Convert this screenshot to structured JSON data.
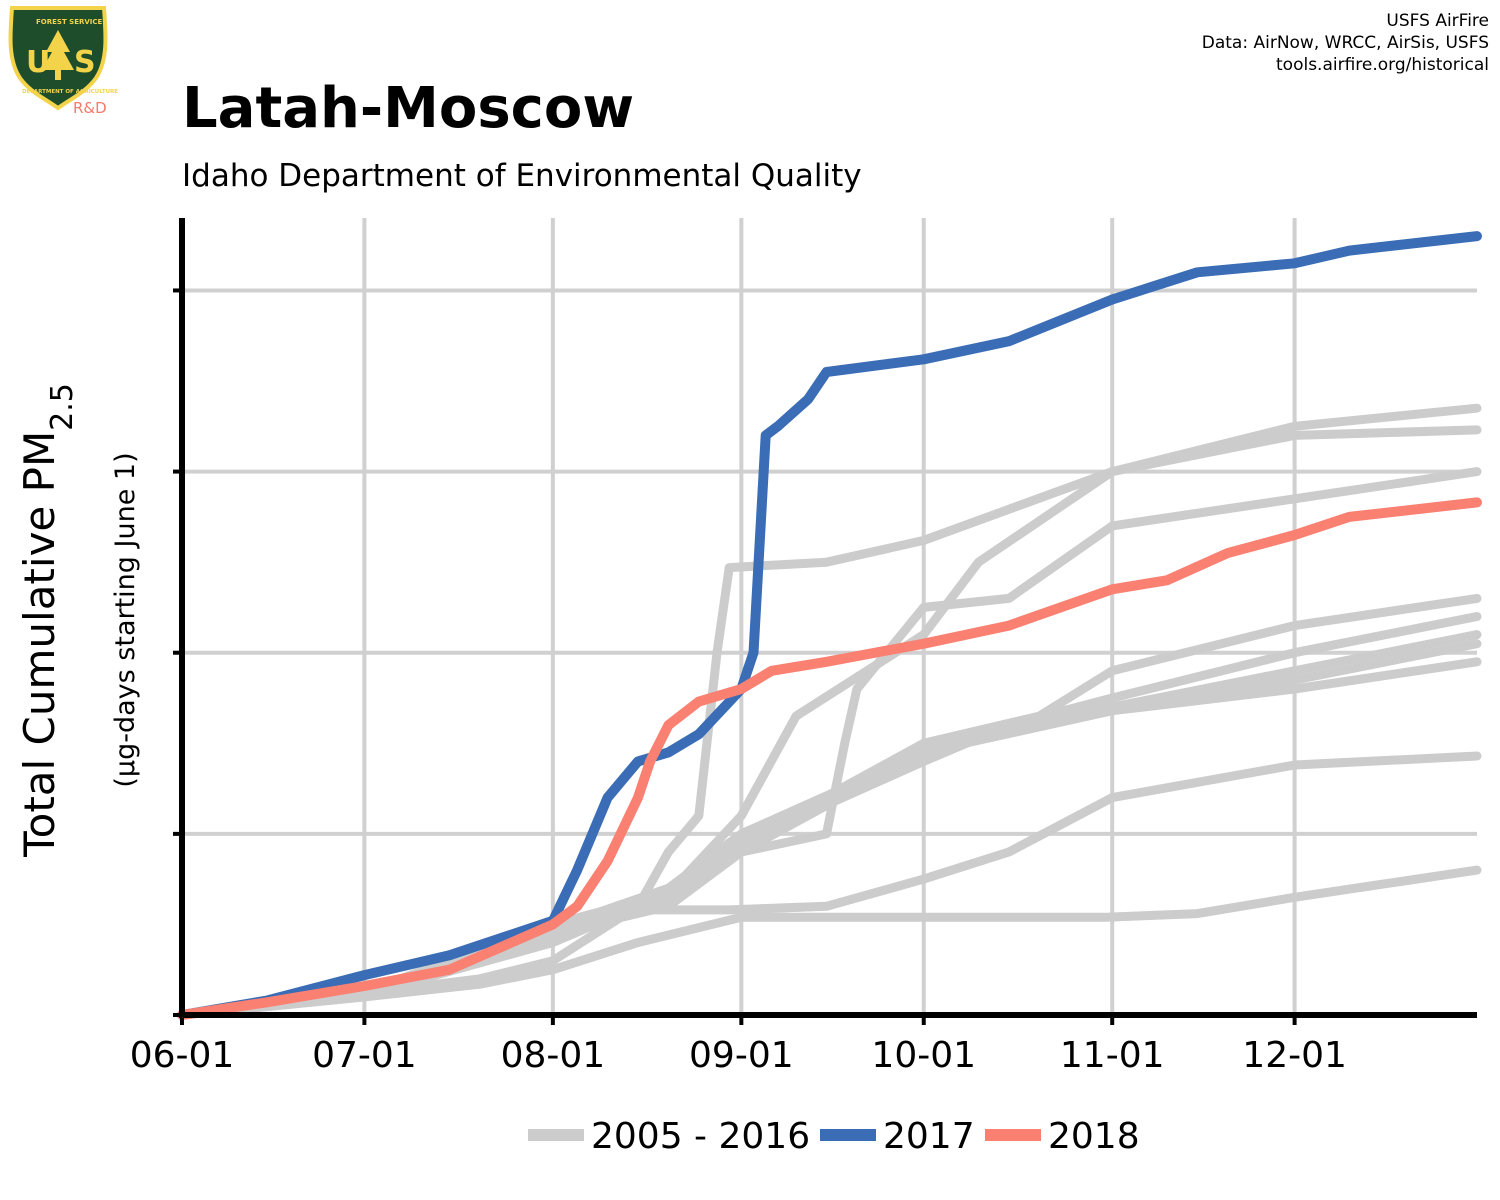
{
  "header": {
    "title": "Latah-Moscow",
    "subtitle": "Idaho Department of Environmental Quality",
    "credits": [
      "USFS AirFire",
      "Data: AirNow, WRCC, AirSis, USFS",
      "tools.airfire.org/historical"
    ]
  },
  "logo": {
    "icon": "usfs-shield-icon",
    "letters": "USA",
    "ring_top": "FOREST SERVICE",
    "ring_bottom": "DEPARTMENT OF AGRICULTURE",
    "tag": "R&D",
    "colors": {
      "shield": "#1d4d2a",
      "gold": "#f3d34a",
      "tag": "#f47a6a"
    }
  },
  "colors": {
    "historical": "#cccccc",
    "y2017": "#3a6db5",
    "y2018": "#fa8072",
    "grid": "#d0d0d0",
    "axis": "#000000"
  },
  "chart_data": {
    "type": "line",
    "title": "Latah-Moscow",
    "subtitle": "Idaho Department of Environmental Quality",
    "xlabel": "",
    "ylabel": "Total Cumulative PM",
    "ylabel_sub": "2.5",
    "ylabel_note": "(µg-days starting June 1)",
    "x_unit": "date (month-day)",
    "xlim": [
      "06-01",
      "12-31"
    ],
    "x_ticks": [
      "06-01",
      "07-01",
      "08-01",
      "09-01",
      "10-01",
      "11-01",
      "12-01"
    ],
    "ylim": [
      0,
      4.4
    ],
    "y_ticks": [
      0,
      1,
      2,
      3,
      4
    ],
    "y_tick_labels_shown": false,
    "grid": true,
    "legend_placement": "bottom",
    "legend": [
      {
        "label": "2005 - 2016",
        "color": "#cccccc"
      },
      {
        "label": "2017",
        "color": "#3a6db5"
      },
      {
        "label": "2018",
        "color": "#fa8072"
      }
    ],
    "series": [
      {
        "group": "historical",
        "color": "#cccccc",
        "points": [
          [
            "06-01",
            0
          ],
          [
            "07-01",
            0.12
          ],
          [
            "07-20",
            0.2
          ],
          [
            "08-01",
            0.3
          ],
          [
            "08-15",
            0.6
          ],
          [
            "08-20",
            0.9
          ],
          [
            "08-25",
            1.1
          ],
          [
            "08-28",
            2.0
          ],
          [
            "08-30",
            2.47
          ],
          [
            "09-15",
            2.5
          ],
          [
            "10-01",
            2.62
          ],
          [
            "11-01",
            3.0
          ],
          [
            "12-01",
            3.25
          ],
          [
            "12-31",
            3.35
          ]
        ]
      },
      {
        "group": "historical",
        "color": "#cccccc",
        "points": [
          [
            "06-01",
            0
          ],
          [
            "07-01",
            0.13
          ],
          [
            "08-01",
            0.5
          ],
          [
            "08-20",
            0.67
          ],
          [
            "09-01",
            1.1
          ],
          [
            "09-10",
            1.65
          ],
          [
            "10-01",
            2.1
          ],
          [
            "10-10",
            2.5
          ],
          [
            "11-01",
            3.0
          ],
          [
            "12-01",
            3.2
          ],
          [
            "12-31",
            3.23
          ]
        ]
      },
      {
        "group": "historical",
        "color": "#cccccc",
        "points": [
          [
            "06-01",
            0
          ],
          [
            "07-01",
            0.1
          ],
          [
            "08-01",
            0.45
          ],
          [
            "08-20",
            0.6
          ],
          [
            "09-01",
            0.9
          ],
          [
            "09-15",
            1.0
          ],
          [
            "09-18",
            1.5
          ],
          [
            "09-20",
            1.8
          ],
          [
            "10-01",
            2.25
          ],
          [
            "10-15",
            2.3
          ],
          [
            "11-01",
            2.7
          ],
          [
            "12-01",
            2.85
          ],
          [
            "12-31",
            3.0
          ]
        ]
      },
      {
        "group": "historical",
        "color": "#cccccc",
        "points": [
          [
            "06-01",
            0
          ],
          [
            "07-01",
            0.11
          ],
          [
            "08-01",
            0.4
          ],
          [
            "08-15",
            0.6
          ],
          [
            "09-01",
            0.9
          ],
          [
            "09-15",
            1.2
          ],
          [
            "10-01",
            1.5
          ],
          [
            "10-20",
            1.65
          ],
          [
            "11-01",
            1.9
          ],
          [
            "12-01",
            2.15
          ],
          [
            "12-31",
            2.3
          ]
        ]
      },
      {
        "group": "historical",
        "color": "#cccccc",
        "points": [
          [
            "06-01",
            0
          ],
          [
            "07-01",
            0.12
          ],
          [
            "08-01",
            0.5
          ],
          [
            "08-20",
            0.62
          ],
          [
            "09-01",
            0.95
          ],
          [
            "10-01",
            1.4
          ],
          [
            "10-15",
            1.6
          ],
          [
            "11-01",
            1.75
          ],
          [
            "12-01",
            2.0
          ],
          [
            "12-31",
            2.2
          ]
        ]
      },
      {
        "group": "historical",
        "color": "#cccccc",
        "points": [
          [
            "06-01",
            0
          ],
          [
            "07-01",
            0.12
          ],
          [
            "08-01",
            0.45
          ],
          [
            "08-20",
            0.7
          ],
          [
            "09-01",
            1.0
          ],
          [
            "10-01",
            1.45
          ],
          [
            "11-01",
            1.7
          ],
          [
            "12-01",
            1.9
          ],
          [
            "12-31",
            2.1
          ]
        ]
      },
      {
        "group": "historical",
        "color": "#cccccc",
        "points": [
          [
            "06-01",
            0
          ],
          [
            "07-01",
            0.13
          ],
          [
            "08-01",
            0.48
          ],
          [
            "08-20",
            0.7
          ],
          [
            "09-01",
            0.95
          ],
          [
            "10-01",
            1.5
          ],
          [
            "11-01",
            1.7
          ],
          [
            "12-01",
            1.85
          ],
          [
            "12-31",
            2.05
          ]
        ]
      },
      {
        "group": "historical",
        "color": "#cccccc",
        "points": [
          [
            "06-01",
            0
          ],
          [
            "07-01",
            0.13
          ],
          [
            "08-01",
            0.47
          ],
          [
            "08-20",
            0.62
          ],
          [
            "09-01",
            0.9
          ],
          [
            "10-01",
            1.45
          ],
          [
            "11-01",
            1.68
          ],
          [
            "12-01",
            1.8
          ],
          [
            "12-31",
            1.95
          ]
        ]
      },
      {
        "group": "historical",
        "color": "#cccccc",
        "points": [
          [
            "06-01",
            0
          ],
          [
            "07-01",
            0.12
          ],
          [
            "08-01",
            0.45
          ],
          [
            "08-15",
            0.58
          ],
          [
            "08-30",
            0.58
          ],
          [
            "09-15",
            0.6
          ],
          [
            "10-01",
            0.75
          ],
          [
            "10-15",
            0.9
          ],
          [
            "11-01",
            1.2
          ],
          [
            "12-01",
            1.38
          ],
          [
            "12-31",
            1.43
          ]
        ]
      },
      {
        "group": "historical",
        "color": "#cccccc",
        "points": [
          [
            "06-01",
            0
          ],
          [
            "07-01",
            0.1
          ],
          [
            "07-20",
            0.17
          ],
          [
            "08-01",
            0.25
          ],
          [
            "08-15",
            0.4
          ],
          [
            "09-01",
            0.54
          ],
          [
            "09-30",
            0.54
          ],
          [
            "10-31",
            0.54
          ],
          [
            "11-15",
            0.56
          ],
          [
            "12-01",
            0.65
          ],
          [
            "12-15",
            0.72
          ],
          [
            "12-31",
            0.8
          ]
        ]
      },
      {
        "group": "y2017",
        "color": "#3a6db5",
        "points": [
          [
            "06-01",
            0
          ],
          [
            "06-15",
            0.08
          ],
          [
            "07-01",
            0.22
          ],
          [
            "07-15",
            0.33
          ],
          [
            "08-01",
            0.52
          ],
          [
            "08-05",
            0.8
          ],
          [
            "08-10",
            1.2
          ],
          [
            "08-15",
            1.4
          ],
          [
            "08-20",
            1.45
          ],
          [
            "08-25",
            1.55
          ],
          [
            "09-01",
            1.8
          ],
          [
            "09-03",
            2.0
          ],
          [
            "09-05",
            3.2
          ],
          [
            "09-07",
            3.25
          ],
          [
            "09-12",
            3.4
          ],
          [
            "09-15",
            3.55
          ],
          [
            "10-01",
            3.62
          ],
          [
            "10-15",
            3.72
          ],
          [
            "11-01",
            3.95
          ],
          [
            "11-15",
            4.1
          ],
          [
            "12-01",
            4.15
          ],
          [
            "12-10",
            4.22
          ],
          [
            "12-31",
            4.3
          ]
        ]
      },
      {
        "group": "y2018",
        "color": "#fa8072",
        "points": [
          [
            "06-01",
            0
          ],
          [
            "06-15",
            0.07
          ],
          [
            "07-01",
            0.16
          ],
          [
            "07-15",
            0.25
          ],
          [
            "08-01",
            0.5
          ],
          [
            "08-05",
            0.6
          ],
          [
            "08-10",
            0.85
          ],
          [
            "08-15",
            1.2
          ],
          [
            "08-17",
            1.4
          ],
          [
            "08-20",
            1.6
          ],
          [
            "08-25",
            1.73
          ],
          [
            "09-01",
            1.8
          ],
          [
            "09-06",
            1.9
          ],
          [
            "09-15",
            1.95
          ],
          [
            "10-01",
            2.05
          ],
          [
            "10-15",
            2.15
          ],
          [
            "11-01",
            2.35
          ],
          [
            "11-10",
            2.4
          ],
          [
            "11-20",
            2.55
          ],
          [
            "12-01",
            2.65
          ],
          [
            "12-10",
            2.75
          ],
          [
            "12-31",
            2.83
          ]
        ]
      }
    ]
  }
}
